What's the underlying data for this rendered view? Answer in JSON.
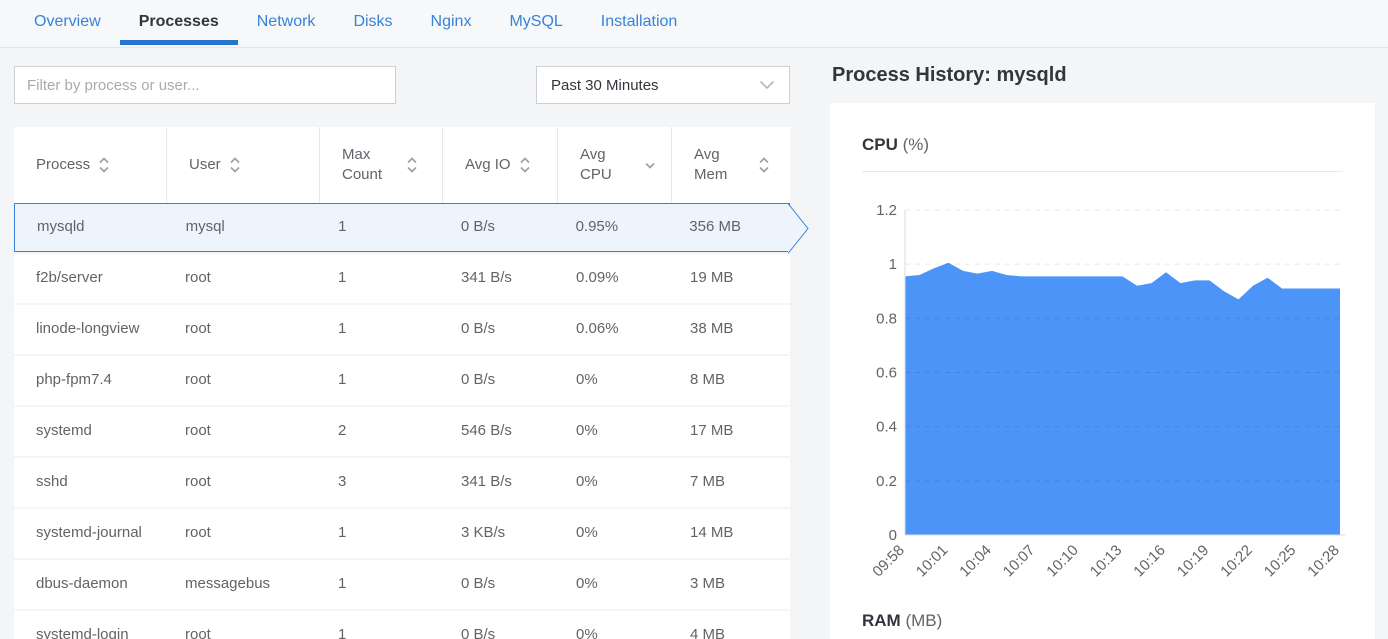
{
  "tabs": {
    "items": [
      {
        "label": "Overview",
        "active": false
      },
      {
        "label": "Processes",
        "active": true
      },
      {
        "label": "Network",
        "active": false
      },
      {
        "label": "Disks",
        "active": false
      },
      {
        "label": "Nginx",
        "active": false
      },
      {
        "label": "MySQL",
        "active": false
      },
      {
        "label": "Installation",
        "active": false
      }
    ]
  },
  "filter": {
    "placeholder": "Filter by process or user..."
  },
  "time_range": {
    "selected": "Past 30 Minutes"
  },
  "table": {
    "columns": [
      {
        "label": "Process",
        "sort": "both"
      },
      {
        "label": "User",
        "sort": "both"
      },
      {
        "label": "Max Count",
        "sort": "both"
      },
      {
        "label": "Avg IO",
        "sort": "both"
      },
      {
        "label": "Avg CPU",
        "sort": "desc"
      },
      {
        "label": "Avg Mem",
        "sort": "both"
      }
    ],
    "rows": [
      {
        "process": "mysqld",
        "user": "mysql",
        "max_count": "1",
        "avg_io": "0 B/s",
        "avg_cpu": "0.95%",
        "avg_mem": "356 MB",
        "selected": true
      },
      {
        "process": "f2b/server",
        "user": "root",
        "max_count": "1",
        "avg_io": "341 B/s",
        "avg_cpu": "0.09%",
        "avg_mem": "19 MB",
        "selected": false
      },
      {
        "process": "linode-longview",
        "user": "root",
        "max_count": "1",
        "avg_io": "0 B/s",
        "avg_cpu": "0.06%",
        "avg_mem": "38 MB",
        "selected": false
      },
      {
        "process": "php-fpm7.4",
        "user": "root",
        "max_count": "1",
        "avg_io": "0 B/s",
        "avg_cpu": "0%",
        "avg_mem": "8 MB",
        "selected": false
      },
      {
        "process": "systemd",
        "user": "root",
        "max_count": "2",
        "avg_io": "546 B/s",
        "avg_cpu": "0%",
        "avg_mem": "17 MB",
        "selected": false
      },
      {
        "process": "sshd",
        "user": "root",
        "max_count": "3",
        "avg_io": "341 B/s",
        "avg_cpu": "0%",
        "avg_mem": "7 MB",
        "selected": false
      },
      {
        "process": "systemd-journal",
        "user": "root",
        "max_count": "1",
        "avg_io": "3 KB/s",
        "avg_cpu": "0%",
        "avg_mem": "14 MB",
        "selected": false
      },
      {
        "process": "dbus-daemon",
        "user": "messagebus",
        "max_count": "1",
        "avg_io": "0 B/s",
        "avg_cpu": "0%",
        "avg_mem": "3 MB",
        "selected": false
      },
      {
        "process": "systemd-login",
        "user": "root",
        "max_count": "1",
        "avg_io": "0 B/s",
        "avg_cpu": "0%",
        "avg_mem": "4 MB",
        "selected": false
      }
    ]
  },
  "detail": {
    "title": "Process History: mysqld",
    "cpu_title": "CPU",
    "cpu_unit": "(%)",
    "ram_title": "RAM",
    "ram_unit": "(MB)"
  },
  "chart_data": {
    "type": "area",
    "title": "CPU (%)",
    "xlabel": "",
    "ylabel": "CPU %",
    "x": [
      "09:58",
      "09:59",
      "10:00",
      "10:01",
      "10:02",
      "10:03",
      "10:04",
      "10:05",
      "10:06",
      "10:07",
      "10:08",
      "10:09",
      "10:10",
      "10:11",
      "10:12",
      "10:13",
      "10:14",
      "10:15",
      "10:16",
      "10:17",
      "10:18",
      "10:19",
      "10:20",
      "10:21",
      "10:22",
      "10:23",
      "10:24",
      "10:25",
      "10:26",
      "10:27",
      "10:28"
    ],
    "series": [
      {
        "name": "CPU %",
        "values": [
          0.955,
          0.96,
          0.985,
          1.005,
          0.975,
          0.965,
          0.975,
          0.96,
          0.955,
          0.955,
          0.955,
          0.955,
          0.955,
          0.955,
          0.955,
          0.955,
          0.92,
          0.93,
          0.97,
          0.93,
          0.94,
          0.94,
          0.9,
          0.87,
          0.92,
          0.95,
          0.91,
          0.91,
          0.91,
          0.91,
          0.91
        ]
      }
    ],
    "ylim": [
      0,
      1.2
    ],
    "yticks": [
      0,
      0.2,
      0.4,
      0.6,
      0.8,
      1,
      1.2
    ],
    "xtick_labels": [
      "09:58",
      "10:01",
      "10:04",
      "10:07",
      "10:10",
      "10:13",
      "10:16",
      "10:19",
      "10:22",
      "10:25",
      "10:28"
    ],
    "xtick_every": 3,
    "grid": "dashed-horizontal",
    "legend_position": "none",
    "fill_color": "#4d94f8"
  },
  "colors": {
    "tab_blue": "#3683dc",
    "active_tab_underline": "#2575d0",
    "selected_row_border": "#3683dc",
    "selected_row_bg": "#eef4fc",
    "chart_fill": "#4d94f8",
    "page_bg": "#f4f5f6",
    "card_bg": "#ffffff",
    "text_dark": "#32363c",
    "text_gray": "#606469"
  }
}
